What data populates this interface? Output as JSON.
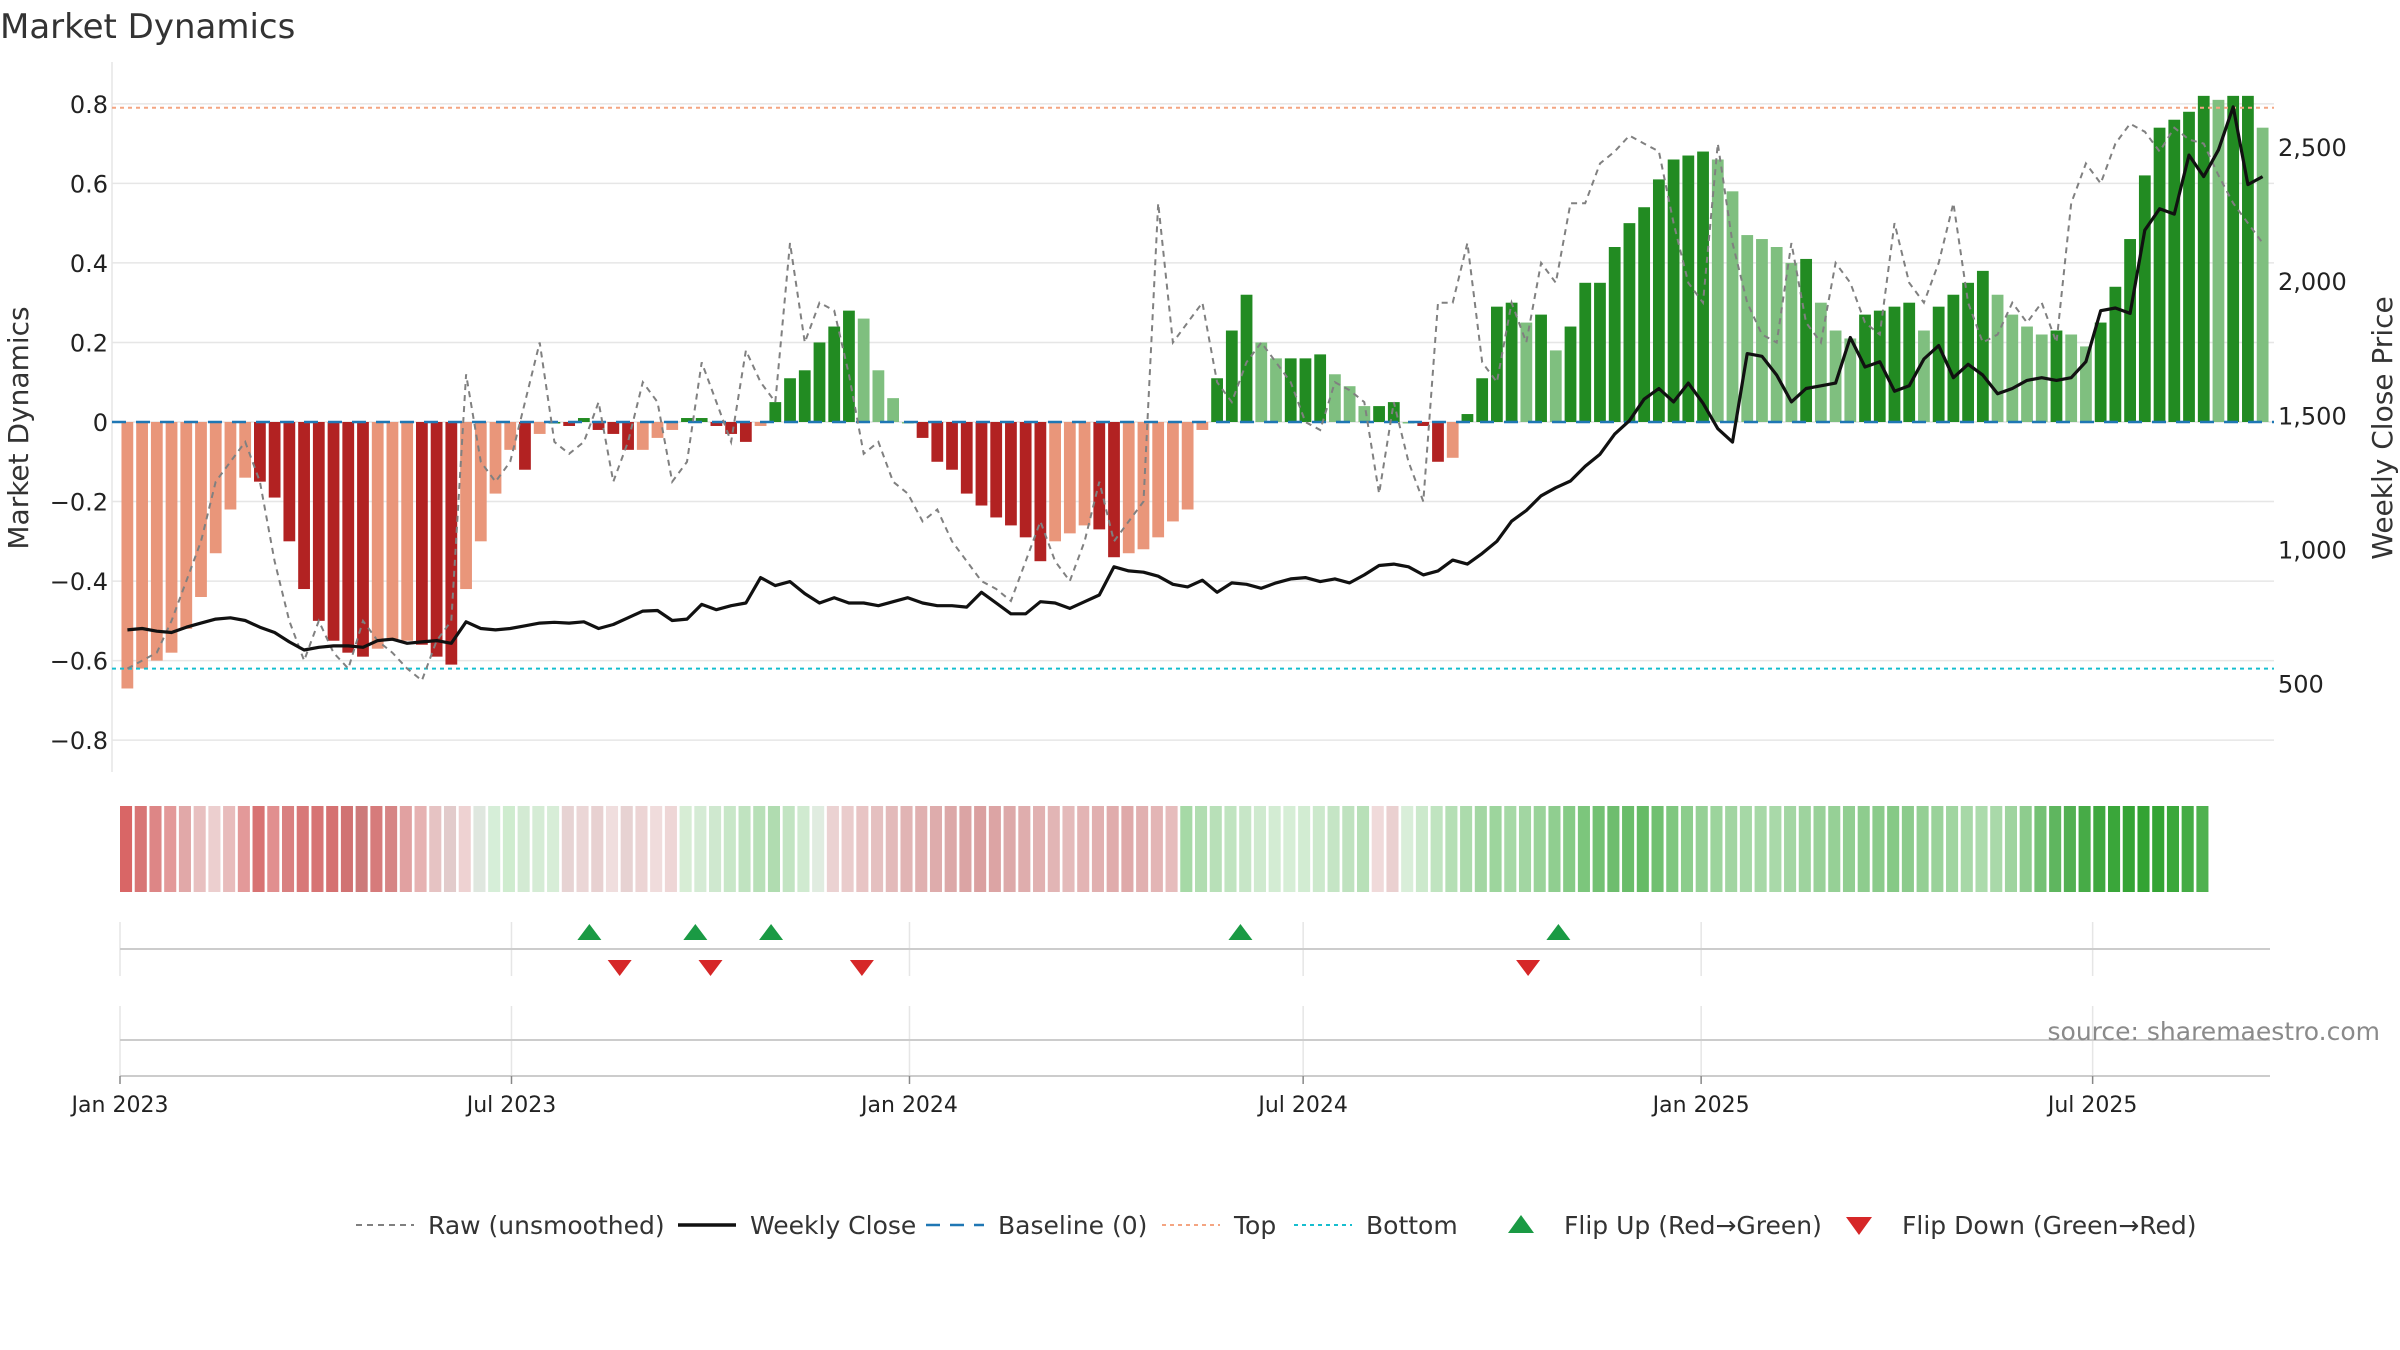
{
  "chart_data": {
    "type": "bar",
    "title": "Market Dynamics",
    "ylabel_left": "Market Dynamics",
    "ylabel_right": "Weekly Close Price",
    "ylim_left": [
      -0.88,
      0.88
    ],
    "ylim_right": [
      170,
      2780
    ],
    "yticks_left": [
      -0.8,
      -0.6,
      -0.4,
      -0.2,
      0,
      0.2,
      0.4,
      0.6,
      0.8
    ],
    "yticks_right": [
      500,
      1000,
      1500,
      2000,
      2500
    ],
    "ytick_labels_left": [
      "−0.8",
      "−0.6",
      "−0.4",
      "−0.2",
      "0",
      "0.2",
      "0.4",
      "0.6",
      "0.8"
    ],
    "ytick_labels_right": [
      "500",
      "1,000",
      "1,500",
      "2,000",
      "2,500"
    ],
    "x_start": "2023-01-01",
    "x_end": "2025-09-21",
    "xticks": [
      {
        "label": "Jan 2023",
        "date": "2023-01-01"
      },
      {
        "label": "Jul 2023",
        "date": "2023-07-01"
      },
      {
        "label": "Jan 2024",
        "date": "2024-01-01"
      },
      {
        "label": "Jul 2024",
        "date": "2024-07-01"
      },
      {
        "label": "Jan 2025",
        "date": "2025-01-01"
      },
      {
        "label": "Jul 2025",
        "date": "2025-07-01"
      }
    ],
    "grid": true,
    "legend_position": "bottom-center",
    "top_threshold": 0.79,
    "bottom_threshold": -0.62,
    "baseline": 0,
    "smoothed_values": [
      -0.67,
      -0.62,
      -0.6,
      -0.58,
      -0.52,
      -0.44,
      -0.33,
      -0.22,
      -0.14,
      -0.15,
      -0.19,
      -0.3,
      -0.42,
      -0.5,
      -0.55,
      -0.58,
      -0.59,
      -0.57,
      -0.55,
      -0.55,
      -0.56,
      -0.59,
      -0.61,
      -0.42,
      -0.3,
      -0.18,
      -0.07,
      -0.12,
      -0.03,
      0.0,
      -0.01,
      0.01,
      -0.02,
      -0.03,
      -0.07,
      -0.07,
      -0.04,
      -0.02,
      0.01,
      0.01,
      -0.01,
      -0.03,
      -0.05,
      -0.01,
      0.05,
      0.11,
      0.13,
      0.2,
      0.24,
      0.28,
      0.26,
      0.13,
      0.06,
      0.0,
      -0.04,
      -0.1,
      -0.12,
      -0.18,
      -0.21,
      -0.24,
      -0.26,
      -0.29,
      -0.35,
      -0.3,
      -0.28,
      -0.26,
      -0.27,
      -0.34,
      -0.33,
      -0.32,
      -0.29,
      -0.25,
      -0.22,
      -0.02,
      0.11,
      0.23,
      0.32,
      0.2,
      0.16,
      0.16,
      0.16,
      0.17,
      0.12,
      0.09,
      0.04,
      0.04,
      0.05,
      0.0,
      -0.01,
      -0.1,
      -0.09,
      0.02,
      0.11,
      0.29,
      0.3,
      0.25,
      0.27,
      0.18,
      0.24,
      0.35,
      0.35,
      0.44,
      0.5,
      0.54,
      0.61,
      0.66,
      0.67,
      0.68,
      0.66,
      0.58,
      0.47,
      0.46,
      0.44,
      0.4,
      0.41,
      0.3,
      0.23,
      0.21,
      0.27,
      0.28,
      0.29,
      0.3,
      0.23,
      0.29,
      0.32,
      0.35,
      0.38,
      0.32,
      0.27,
      0.24,
      0.22,
      0.23,
      0.22,
      0.19,
      0.25,
      0.34,
      0.46,
      0.62,
      0.74,
      0.76,
      0.78,
      0.82,
      0.81,
      0.82,
      0.82,
      0.74
    ],
    "raw_values": [
      -0.62,
      -0.6,
      -0.58,
      -0.5,
      -0.4,
      -0.3,
      -0.15,
      -0.1,
      -0.05,
      -0.15,
      -0.35,
      -0.5,
      -0.6,
      -0.5,
      -0.58,
      -0.62,
      -0.5,
      -0.55,
      -0.58,
      -0.62,
      -0.65,
      -0.55,
      -0.5,
      0.12,
      -0.1,
      -0.15,
      -0.1,
      0.05,
      0.2,
      -0.05,
      -0.08,
      -0.05,
      0.05,
      -0.15,
      -0.05,
      0.1,
      0.05,
      -0.15,
      -0.1,
      0.15,
      0.05,
      -0.05,
      0.18,
      0.1,
      0.05,
      0.45,
      0.2,
      0.3,
      0.28,
      0.12,
      -0.08,
      -0.05,
      -0.15,
      -0.18,
      -0.25,
      -0.22,
      -0.3,
      -0.35,
      -0.4,
      -0.42,
      -0.45,
      -0.35,
      -0.25,
      -0.35,
      -0.4,
      -0.3,
      -0.15,
      -0.3,
      -0.25,
      -0.2,
      0.55,
      0.2,
      0.25,
      0.3,
      0.1,
      0.05,
      0.15,
      0.2,
      0.15,
      0.1,
      0.0,
      -0.02,
      0.1,
      0.08,
      0.05,
      -0.18,
      0.05,
      -0.1,
      -0.2,
      0.3,
      0.3,
      0.45,
      0.15,
      0.1,
      0.3,
      0.2,
      0.4,
      0.35,
      0.55,
      0.55,
      0.65,
      0.68,
      0.72,
      0.7,
      0.68,
      0.5,
      0.35,
      0.3,
      0.7,
      0.45,
      0.3,
      0.22,
      0.2,
      0.45,
      0.25,
      0.2,
      0.4,
      0.35,
      0.25,
      0.22,
      0.5,
      0.35,
      0.3,
      0.4,
      0.55,
      0.3,
      0.2,
      0.22,
      0.3,
      0.25,
      0.3,
      0.2,
      0.55,
      0.65,
      0.6,
      0.7,
      0.75,
      0.73,
      0.68,
      0.74,
      0.71,
      0.7,
      0.62,
      0.55,
      0.5,
      0.45
    ],
    "close_values": [
      700,
      705,
      695,
      690,
      710,
      725,
      740,
      745,
      735,
      710,
      690,
      655,
      625,
      635,
      640,
      640,
      635,
      660,
      665,
      650,
      655,
      660,
      650,
      730,
      705,
      700,
      705,
      715,
      725,
      728,
      725,
      730,
      705,
      720,
      745,
      770,
      772,
      735,
      740,
      795,
      775,
      790,
      800,
      895,
      865,
      880,
      835,
      800,
      820,
      800,
      800,
      790,
      805,
      820,
      800,
      790,
      790,
      785,
      840,
      800,
      760,
      760,
      805,
      800,
      780,
      805,
      830,
      935,
      920,
      915,
      900,
      870,
      860,
      885,
      840,
      875,
      870,
      855,
      875,
      890,
      895,
      880,
      890,
      875,
      905,
      940,
      945,
      935,
      905,
      920,
      960,
      945,
      985,
      1030,
      1105,
      1145,
      1200,
      1230,
      1255,
      1310,
      1355,
      1430,
      1480,
      1560,
      1600,
      1550,
      1620,
      1545,
      1450,
      1400,
      1730,
      1720,
      1650,
      1550,
      1600,
      1610,
      1620,
      1790,
      1680,
      1700,
      1590,
      1610,
      1710,
      1760,
      1640,
      1690,
      1650,
      1580,
      1600,
      1630,
      1640,
      1630,
      1640,
      1700,
      1890,
      1900,
      1880,
      2190,
      2270,
      2250,
      2470,
      2390,
      2490,
      2650,
      2360,
      2390
    ],
    "heat_colors": [
      "#d96666",
      "#d87575",
      "#dd8686",
      "#e39999",
      "#e1a8a8",
      "#e8c0c0",
      "#eccfcf",
      "#e8bcbc",
      "#e39999",
      "#d87373",
      "#e18f8f",
      "#d98080",
      "#d87878",
      "#d77474",
      "#d57171",
      "#d17272",
      "#cc7a7a",
      "#d67b7b",
      "#d68585",
      "#e1a1a1",
      "#e6b2b2",
      "#e6c3c3",
      "#e2cbcb",
      "#eed2d2",
      "#dfe7df",
      "#d6eed8",
      "#cfeccf",
      "#d3ead3",
      "#d5ecd5",
      "#d7edd7",
      "#e7d3d3",
      "#ebd6d6",
      "#e8d1d1",
      "#f0dede",
      "#e7d2d2",
      "#ecd4d4",
      "#f0dcdc",
      "#eed6d6",
      "#d7edd5",
      "#d5ebd5",
      "#cfe8cf",
      "#c8e7c8",
      "#c0e3c0",
      "#b8e0b8",
      "#b0dcb0",
      "#c2e4c2",
      "#d0ead0",
      "#e0ece0",
      "#ebd2d2",
      "#eacccc",
      "#e8c4c4",
      "#e5c0c0",
      "#e3baba",
      "#e1b4b4",
      "#e0b0b0",
      "#deacac",
      "#dca8a8",
      "#dba4a4",
      "#daa0a0",
      "#dca4a4",
      "#dda9a9",
      "#dfadad",
      "#e1b1b1",
      "#e2b5b5",
      "#e4baba",
      "#e3b4b4",
      "#e1b0b0",
      "#e0acac",
      "#dfa9a9",
      "#e1b0b0",
      "#e3b5b5",
      "#e6bcbc",
      "#a6d9a6",
      "#b1ddb1",
      "#b8e0b8",
      "#c0e4c0",
      "#c7e6c7",
      "#cfeacf",
      "#d3ecd3",
      "#d6eed6",
      "#d2ecd2",
      "#cce9cc",
      "#c5e5c5",
      "#bfe2bf",
      "#b8e0b8",
      "#f0dada",
      "#ead0d0",
      "#d9eed9",
      "#cce9cc",
      "#c0e4c0",
      "#b5dfb5",
      "#acdbac",
      "#a3d6a3",
      "#9dd59d",
      "#a6d9a6",
      "#a2d6a2",
      "#9ad39a",
      "#90ce90",
      "#86cb86",
      "#7cc67c",
      "#73c173",
      "#6ebd6e",
      "#6abd6a",
      "#66bb66",
      "#70c070",
      "#7fc77f",
      "#8ccd8c",
      "#95d095",
      "#9cd49c",
      "#a1d5a1",
      "#a6d8a6",
      "#a7d8a7",
      "#a9d9a9",
      "#a3d6a3",
      "#9ed39e",
      "#99d199",
      "#96d096",
      "#92ce92",
      "#8ecc8e",
      "#8bcb8b",
      "#86c986",
      "#8ccb8c",
      "#94cf94",
      "#9ad29a",
      "#a0d5a0",
      "#a7d8a7",
      "#acdbac",
      "#a9d9a9",
      "#9fd49f",
      "#8ecc8e",
      "#74c174",
      "#5fb65f",
      "#52b052",
      "#47ab47",
      "#3fa83f",
      "#3aa63a",
      "#35a435",
      "#33a333",
      "#34a434",
      "#3ba83b",
      "#45ac45",
      "#4fb14f"
    ],
    "flip_up_dates": [
      "2023-08-06",
      "2023-09-24",
      "2023-10-29",
      "2024-06-02",
      "2024-10-27"
    ],
    "flip_down_dates": [
      "2023-08-20",
      "2023-10-01",
      "2023-12-10",
      "2024-10-13"
    ],
    "legend": [
      {
        "key": "raw",
        "label": "Raw (unsmoothed)"
      },
      {
        "key": "close",
        "label": "Weekly Close"
      },
      {
        "key": "baseline",
        "label": "Baseline (0)"
      },
      {
        "key": "top",
        "label": "Top"
      },
      {
        "key": "bottom",
        "label": "Bottom"
      },
      {
        "key": "flip_up",
        "label": "Flip Up (Red→Green)"
      },
      {
        "key": "flip_down",
        "label": "Flip Down (Green→Red)"
      }
    ],
    "source_note": "source: sharemaestro.com"
  },
  "colors": {
    "green_strong": "#228b22",
    "green_soft": "#7fbf7f",
    "red_strong": "#b22222",
    "red_soft": "#e9967a",
    "close_line": "#111111",
    "raw_line": "#808080",
    "baseline": "#1f77b4",
    "top_line": "#f4a582",
    "bottom_line": "#17becf",
    "flip_up": "#1a9a44",
    "flip_down": "#d62728",
    "grid": "#e6e6e6",
    "text": "#333333"
  }
}
